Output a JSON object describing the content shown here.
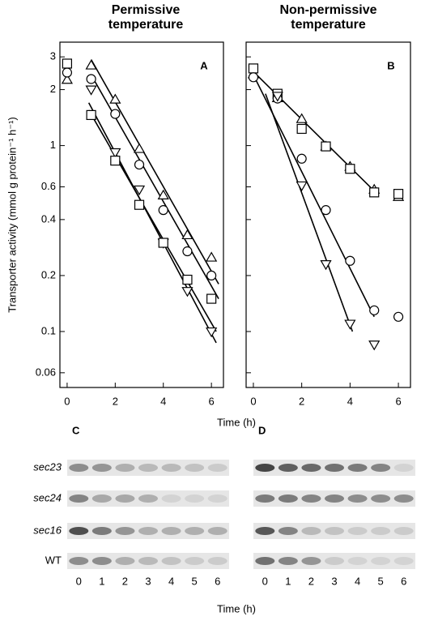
{
  "chart_data": [
    {
      "type": "scatter",
      "title": "Permissive temperature",
      "annotation": "A",
      "ylabel": "Transporter activity (mmol g protein⁻¹ h⁻¹)",
      "xlabel": "Time (h)",
      "log_y": true,
      "xlim": [
        -0.3,
        6.5
      ],
      "ylim": [
        0.05,
        3.6
      ],
      "xticks": [
        0,
        2,
        4,
        6
      ],
      "yticks": [
        0.06,
        0.1,
        0.2,
        0.4,
        0.6,
        1,
        2,
        3
      ],
      "ytick_labels": true,
      "x": [
        0,
        1,
        2,
        3,
        4,
        5,
        6
      ],
      "series": [
        {
          "marker": "triangle-up",
          "color": "#000000",
          "values": [
            2.26,
            2.7,
            1.77,
            0.96,
            0.54,
            0.33,
            0.25
          ],
          "fit": {
            "x": [
              1,
              6.3
            ],
            "values": [
              2.9,
              0.18
            ]
          }
        },
        {
          "marker": "circle",
          "color": "#000000",
          "values": [
            2.47,
            2.28,
            1.48,
            0.79,
            0.45,
            0.27,
            0.2
          ],
          "fit": {
            "x": [
              1,
              6.3
            ],
            "values": [
              2.4,
              0.15
            ]
          }
        },
        {
          "marker": "triangle-down",
          "color": "#000000",
          "values": [
            null,
            2.0,
            0.92,
            0.58,
            0.3,
            0.165,
            0.1
          ],
          "fit": {
            "x": [
              0.9,
              6.2
            ],
            "values": [
              1.7,
              0.087
            ]
          }
        },
        {
          "marker": "square",
          "color": "#000000",
          "values": [
            2.76,
            1.46,
            0.83,
            0.48,
            0.3,
            0.19,
            0.15
          ],
          "fit": {
            "x": [
              0.9,
              6.2
            ],
            "values": [
              1.55,
              0.1
            ]
          }
        }
      ]
    },
    {
      "type": "scatter",
      "title": "Non-permissive temperature",
      "annotation": "B",
      "log_y": true,
      "xlim": [
        -0.3,
        6.5
      ],
      "ylim": [
        0.05,
        3.6
      ],
      "xticks": [
        0,
        2,
        4,
        6
      ],
      "yticks": [
        0.06,
        0.1,
        0.2,
        0.4,
        0.6,
        1,
        2,
        3
      ],
      "ytick_labels": false,
      "x": [
        0,
        1,
        2,
        3,
        4,
        5,
        6
      ],
      "series": [
        {
          "marker": "triangle-up",
          "color": "#000000",
          "values": [
            2.42,
            1.8,
            1.39,
            0.99,
            0.77,
            0.58,
            0.53
          ],
          "fit": {
            "x": [
              0,
              5
            ],
            "values": [
              2.5,
              0.57
            ]
          }
        },
        {
          "marker": "square",
          "color": "#000000",
          "values": [
            2.6,
            1.9,
            1.23,
            0.99,
            0.75,
            0.56,
            0.55
          ]
        },
        {
          "marker": "circle",
          "color": "#000000",
          "values": [
            2.33,
            1.79,
            0.85,
            0.45,
            0.24,
            0.13,
            0.12
          ],
          "fit": {
            "x": [
              0,
              5
            ],
            "values": [
              2.4,
              0.12
            ]
          }
        },
        {
          "marker": "triangle-down",
          "color": "#000000",
          "values": [
            null,
            1.85,
            0.61,
            0.23,
            0.11,
            0.085,
            null
          ],
          "fit": {
            "x": [
              0.5,
              4.1
            ],
            "values": [
              1.9,
              0.1
            ]
          }
        }
      ]
    }
  ],
  "gels": {
    "rows": [
      "sec23",
      "sec24",
      "sec16",
      "WT"
    ],
    "italic": [
      true,
      true,
      true,
      false
    ],
    "lanes": [
      "0",
      "1",
      "2",
      "3",
      "4",
      "5",
      "6"
    ],
    "xlabel": "Time (h)",
    "panels": [
      {
        "label": "C",
        "intensity": [
          [
            0.5,
            0.45,
            0.3,
            0.25,
            0.25,
            0.2,
            0.15
          ],
          [
            0.55,
            0.35,
            0.35,
            0.3,
            0.1,
            0.1,
            0.1
          ],
          [
            0.85,
            0.6,
            0.45,
            0.3,
            0.3,
            0.3,
            0.3
          ],
          [
            0.5,
            0.5,
            0.3,
            0.25,
            0.2,
            0.15,
            0.15
          ]
        ]
      },
      {
        "label": "D",
        "intensity": [
          [
            0.9,
            0.75,
            0.7,
            0.65,
            0.6,
            0.55,
            0.1
          ],
          [
            0.6,
            0.6,
            0.55,
            0.55,
            0.5,
            0.5,
            0.5
          ],
          [
            0.8,
            0.55,
            0.25,
            0.2,
            0.15,
            0.15,
            0.15
          ],
          [
            0.65,
            0.55,
            0.45,
            0.15,
            0.1,
            0.1,
            0.1
          ]
        ]
      }
    ]
  }
}
